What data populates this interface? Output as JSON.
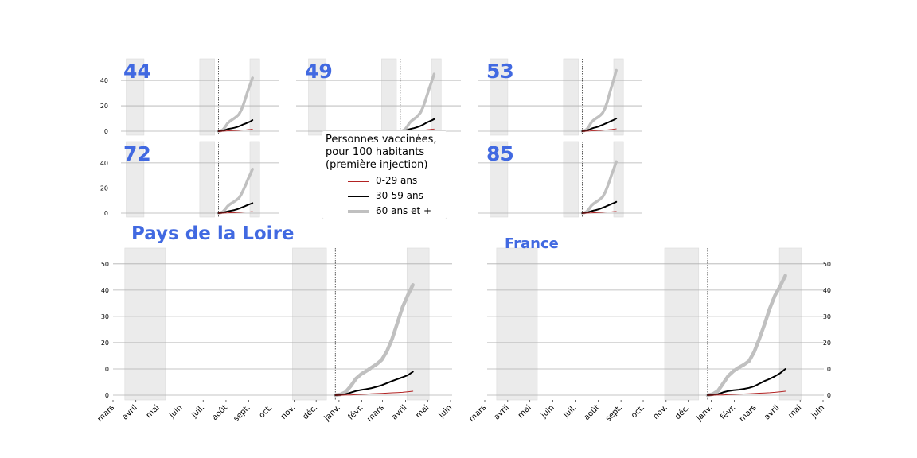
{
  "colors": {
    "title": "#4169e1",
    "series_0_29": "#b22222",
    "series_30_59": "#000000",
    "series_60plus": "#c0c0c0",
    "shade": "#ebebeb",
    "grid": "#b0b0b0"
  },
  "legend": {
    "title_lines": [
      "Personnes vaccinées,",
      "pour 100 habitants",
      "(première injection)"
    ],
    "items": [
      {
        "label": "0-29 ans",
        "color": "#b22222"
      },
      {
        "label": "30-59 ans",
        "color": "#000000"
      },
      {
        "label": "60 ans et +",
        "color": "#c0c0c0"
      }
    ]
  },
  "chart_data": [
    {
      "type": "line",
      "title": "44",
      "grid": true,
      "ylim": [
        0,
        57
      ],
      "yticks": [
        0,
        20,
        40
      ],
      "xaxis_labels": false,
      "x": [
        "2020-12-27",
        "2021-01-03",
        "2021-01-10",
        "2021-01-17",
        "2021-01-24",
        "2021-01-31",
        "2021-02-07",
        "2021-02-14",
        "2021-02-21",
        "2021-02-28",
        "2021-03-07",
        "2021-03-14",
        "2021-03-21",
        "2021-03-28",
        "2021-04-04",
        "2021-04-11"
      ],
      "series": [
        {
          "name": "0-29 ans",
          "values": [
            0,
            0,
            0.05,
            0.15,
            0.25,
            0.35,
            0.45,
            0.5,
            0.6,
            0.7,
            0.8,
            0.9,
            1.0,
            1.2,
            1.4,
            1.6
          ]
        },
        {
          "name": "30-59 ans",
          "values": [
            0,
            0.1,
            0.4,
            1.0,
            1.6,
            2.0,
            2.3,
            2.7,
            3.2,
            3.8,
            4.6,
            5.4,
            6.1,
            6.8,
            7.6,
            8.8
          ]
        },
        {
          "name": "60 ans et +",
          "values": [
            0,
            0.3,
            1.2,
            3.5,
            6.2,
            7.8,
            9.0,
            10.2,
            11.6,
            13.2,
            16.5,
            21.0,
            26.5,
            32.0,
            37.0,
            42.0
          ]
        }
      ]
    },
    {
      "type": "line",
      "title": "49",
      "grid": true,
      "ylim": [
        0,
        57
      ],
      "yticks": [
        0,
        20,
        40
      ],
      "xaxis_labels": false,
      "x": [
        "2020-12-27",
        "2021-01-03",
        "2021-01-10",
        "2021-01-17",
        "2021-01-24",
        "2021-01-31",
        "2021-02-07",
        "2021-02-14",
        "2021-02-21",
        "2021-02-28",
        "2021-03-07",
        "2021-03-14",
        "2021-03-21",
        "2021-03-28",
        "2021-04-04",
        "2021-04-11"
      ],
      "series": [
        {
          "name": "0-29 ans",
          "values": [
            0,
            0,
            0.05,
            0.15,
            0.25,
            0.35,
            0.45,
            0.5,
            0.6,
            0.7,
            0.8,
            0.9,
            1.1,
            1.3,
            1.5,
            1.7
          ]
        },
        {
          "name": "30-59 ans",
          "values": [
            0,
            0.1,
            0.4,
            0.9,
            1.5,
            2.0,
            2.4,
            2.9,
            3.5,
            4.2,
            5.0,
            6.0,
            7.0,
            7.8,
            8.6,
            9.5
          ]
        },
        {
          "name": "60 ans et +",
          "values": [
            0,
            0.3,
            1.2,
            3.5,
            6.3,
            8.2,
            9.5,
            10.8,
            12.5,
            14.8,
            18.5,
            23.5,
            29.0,
            34.5,
            39.5,
            45.0
          ]
        }
      ]
    },
    {
      "type": "line",
      "title": "53",
      "grid": true,
      "ylim": [
        0,
        57
      ],
      "yticks": [
        0,
        20,
        40
      ],
      "xaxis_labels": false,
      "x": [
        "2020-12-27",
        "2021-01-03",
        "2021-01-10",
        "2021-01-17",
        "2021-01-24",
        "2021-01-31",
        "2021-02-07",
        "2021-02-14",
        "2021-02-21",
        "2021-02-28",
        "2021-03-07",
        "2021-03-14",
        "2021-03-21",
        "2021-03-28",
        "2021-04-04",
        "2021-04-11"
      ],
      "series": [
        {
          "name": "0-29 ans",
          "values": [
            0,
            0,
            0.05,
            0.15,
            0.25,
            0.35,
            0.45,
            0.55,
            0.65,
            0.75,
            0.9,
            1.0,
            1.2,
            1.4,
            1.6,
            1.8
          ]
        },
        {
          "name": "30-59 ans",
          "values": [
            0,
            0.1,
            0.5,
            1.2,
            2.0,
            2.6,
            3.0,
            3.6,
            4.3,
            5.0,
            5.8,
            6.6,
            7.4,
            8.2,
            9.0,
            10.0
          ]
        },
        {
          "name": "60 ans et +",
          "values": [
            0,
            0.4,
            1.5,
            4.0,
            7.0,
            8.8,
            10.0,
            11.2,
            12.6,
            14.5,
            18.0,
            23.0,
            29.5,
            35.5,
            41.5,
            48.0
          ]
        }
      ]
    },
    {
      "type": "line",
      "title": "72",
      "grid": true,
      "ylim": [
        0,
        57
      ],
      "yticks": [
        0,
        20,
        40
      ],
      "xaxis_labels": false,
      "x": [
        "2020-12-27",
        "2021-01-03",
        "2021-01-10",
        "2021-01-17",
        "2021-01-24",
        "2021-01-31",
        "2021-02-07",
        "2021-02-14",
        "2021-02-21",
        "2021-02-28",
        "2021-03-07",
        "2021-03-14",
        "2021-03-21",
        "2021-03-28",
        "2021-04-04",
        "2021-04-11"
      ],
      "series": [
        {
          "name": "0-29 ans",
          "values": [
            0,
            0,
            0.05,
            0.1,
            0.2,
            0.3,
            0.35,
            0.4,
            0.5,
            0.6,
            0.7,
            0.8,
            0.9,
            1.0,
            1.1,
            1.2
          ]
        },
        {
          "name": "30-59 ans",
          "values": [
            0,
            0.1,
            0.4,
            0.9,
            1.4,
            1.8,
            2.1,
            2.5,
            3.0,
            3.6,
            4.3,
            5.0,
            5.8,
            6.6,
            7.3,
            8.0
          ]
        },
        {
          "name": "60 ans et +",
          "values": [
            0,
            0.3,
            1.2,
            3.2,
            5.5,
            7.0,
            8.2,
            9.3,
            10.6,
            12.0,
            14.8,
            18.5,
            22.5,
            27.0,
            31.0,
            35.0
          ]
        }
      ]
    },
    {
      "type": "line",
      "title": "85",
      "grid": true,
      "ylim": [
        0,
        57
      ],
      "yticks": [
        0,
        20,
        40
      ],
      "xaxis_labels": false,
      "x": [
        "2020-12-27",
        "2021-01-03",
        "2021-01-10",
        "2021-01-17",
        "2021-01-24",
        "2021-01-31",
        "2021-02-07",
        "2021-02-14",
        "2021-02-21",
        "2021-02-28",
        "2021-03-07",
        "2021-03-14",
        "2021-03-21",
        "2021-03-28",
        "2021-04-04",
        "2021-04-11"
      ],
      "series": [
        {
          "name": "0-29 ans",
          "values": [
            0,
            0,
            0.05,
            0.1,
            0.2,
            0.3,
            0.4,
            0.5,
            0.6,
            0.7,
            0.8,
            0.9,
            1.0,
            1.1,
            1.2,
            1.3
          ]
        },
        {
          "name": "30-59 ans",
          "values": [
            0,
            0.1,
            0.4,
            1.0,
            1.6,
            2.1,
            2.5,
            3.0,
            3.6,
            4.3,
            5.0,
            5.8,
            6.6,
            7.4,
            8.1,
            9.0
          ]
        },
        {
          "name": "60 ans et +",
          "values": [
            0,
            0.3,
            1.3,
            3.5,
            6.0,
            7.6,
            8.8,
            10.0,
            11.4,
            13.0,
            16.2,
            20.5,
            25.5,
            31.0,
            35.8,
            41.0
          ]
        }
      ]
    },
    {
      "type": "line",
      "title": "Pays de la Loire",
      "grid": true,
      "ylim": [
        0,
        56
      ],
      "yticks": [
        0,
        10,
        20,
        30,
        40,
        50
      ],
      "xaxis_labels": true,
      "x": [
        "2020-12-27",
        "2021-01-03",
        "2021-01-10",
        "2021-01-17",
        "2021-01-24",
        "2021-01-31",
        "2021-02-07",
        "2021-02-14",
        "2021-02-21",
        "2021-02-28",
        "2021-03-07",
        "2021-03-14",
        "2021-03-21",
        "2021-03-28",
        "2021-04-04",
        "2021-04-11"
      ],
      "series": [
        {
          "name": "0-29 ans",
          "values": [
            0,
            0,
            0.05,
            0.1,
            0.2,
            0.3,
            0.4,
            0.5,
            0.6,
            0.7,
            0.8,
            0.9,
            1.0,
            1.1,
            1.3,
            1.5
          ]
        },
        {
          "name": "30-59 ans",
          "values": [
            0,
            0.1,
            0.4,
            1.0,
            1.6,
            2.0,
            2.3,
            2.7,
            3.2,
            3.8,
            4.6,
            5.4,
            6.1,
            6.8,
            7.6,
            8.9
          ]
        },
        {
          "name": "60 ans et +",
          "values": [
            0,
            0.3,
            1.2,
            3.5,
            6.3,
            8.0,
            9.2,
            10.5,
            11.8,
            13.5,
            16.8,
            21.5,
            27.5,
            33.5,
            38.0,
            42.0
          ]
        }
      ]
    },
    {
      "type": "line",
      "title": "France",
      "grid": true,
      "ylim": [
        0,
        56
      ],
      "yticks": [
        0,
        10,
        20,
        30,
        40,
        50
      ],
      "xaxis_labels": true,
      "x": [
        "2020-12-27",
        "2021-01-03",
        "2021-01-10",
        "2021-01-17",
        "2021-01-24",
        "2021-01-31",
        "2021-02-07",
        "2021-02-14",
        "2021-02-21",
        "2021-02-28",
        "2021-03-07",
        "2021-03-14",
        "2021-03-21",
        "2021-03-28",
        "2021-04-04",
        "2021-04-11"
      ],
      "series": [
        {
          "name": "0-29 ans",
          "values": [
            0,
            0,
            0.05,
            0.1,
            0.2,
            0.3,
            0.35,
            0.45,
            0.55,
            0.65,
            0.75,
            0.85,
            0.95,
            1.1,
            1.3,
            1.5
          ]
        },
        {
          "name": "30-59 ans",
          "values": [
            0,
            0.1,
            0.4,
            1.1,
            1.6,
            1.9,
            2.1,
            2.4,
            2.8,
            3.4,
            4.4,
            5.4,
            6.2,
            7.2,
            8.4,
            10.0
          ]
        },
        {
          "name": "60 ans et +",
          "values": [
            0,
            0.4,
            1.6,
            4.5,
            7.4,
            9.2,
            10.5,
            11.6,
            13.0,
            16.5,
            21.5,
            27.0,
            33.0,
            38.0,
            41.5,
            45.5
          ]
        }
      ]
    }
  ],
  "shared_axis": {
    "x_range": [
      "2020-03-01",
      "2021-06-01"
    ],
    "month_labels": [
      "mars",
      "avril",
      "mai",
      "juin",
      "juil.",
      "août",
      "sept.",
      "oct.",
      "nov.",
      "déc.",
      "janv.",
      "févr.",
      "mars",
      "avril",
      "mai",
      "juin"
    ],
    "month_dates": [
      "2020-03-01",
      "2020-04-01",
      "2020-05-01",
      "2020-06-01",
      "2020-07-01",
      "2020-08-01",
      "2020-09-01",
      "2020-10-01",
      "2020-11-01",
      "2020-12-01",
      "2021-01-01",
      "2021-02-01",
      "2021-03-01",
      "2021-04-01",
      "2021-05-01",
      "2021-06-01"
    ],
    "shaded_periods": [
      [
        "2020-03-17",
        "2020-05-11"
      ],
      [
        "2020-10-30",
        "2020-12-15"
      ],
      [
        "2021-04-03",
        "2021-05-03"
      ]
    ],
    "vertical_marker": "2020-12-27"
  }
}
